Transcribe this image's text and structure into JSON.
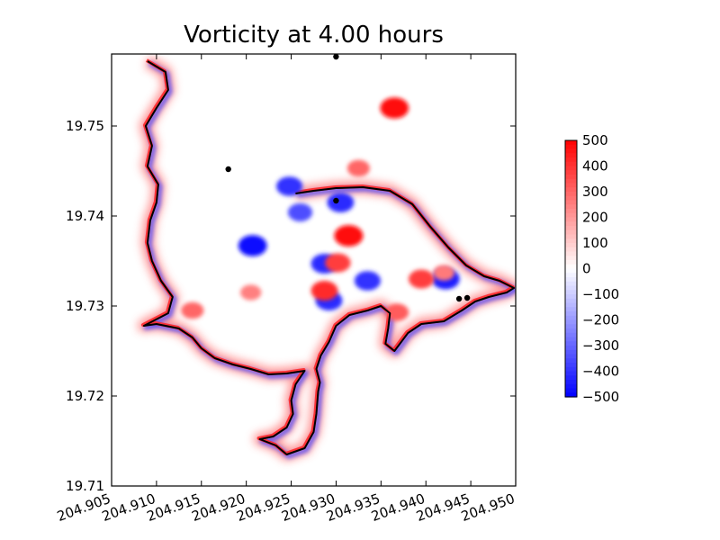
{
  "chart_data": {
    "type": "heatmap",
    "title": "Vorticity at 4.00 hours",
    "xlabel": "",
    "ylabel": "",
    "xlim": [
      204.905,
      204.95
    ],
    "ylim": [
      19.71,
      19.758
    ],
    "x_ticks": [
      "204.905",
      "204.910",
      "204.915",
      "204.920",
      "204.925",
      "204.930",
      "204.935",
      "204.940",
      "204.945",
      "204.950"
    ],
    "x_tick_values": [
      204.905,
      204.91,
      204.915,
      204.92,
      204.925,
      204.93,
      204.935,
      204.94,
      204.945,
      204.95
    ],
    "y_ticks": [
      "19.71",
      "19.72",
      "19.73",
      "19.74",
      "19.75"
    ],
    "y_tick_values": [
      19.71,
      19.72,
      19.73,
      19.74,
      19.75
    ],
    "colorbar": {
      "colormap": "bwr",
      "min": -500,
      "max": 500,
      "ticks": [
        "500",
        "400",
        "300",
        "200",
        "100",
        "0",
        "−100",
        "−200",
        "−300",
        "−400",
        "−500"
      ],
      "tick_values": [
        500,
        400,
        300,
        200,
        100,
        0,
        -100,
        -200,
        -300,
        -400,
        -500
      ],
      "colors": {
        "low": "#0000ff",
        "mid": "#ffffff",
        "high": "#ff0000"
      }
    },
    "vortices": [
      {
        "lon": 204.9207,
        "lat": 19.7367,
        "vorticity": -470
      },
      {
        "lon": 204.9287,
        "lat": 19.7347,
        "vorticity": -420
      },
      {
        "lon": 204.9292,
        "lat": 19.7306,
        "vorticity": -420
      },
      {
        "lon": 204.9305,
        "lat": 19.7415,
        "vorticity": -420
      },
      {
        "lon": 204.9335,
        "lat": 19.7328,
        "vorticity": -400
      },
      {
        "lon": 204.9422,
        "lat": 19.733,
        "vorticity": -450
      },
      {
        "lon": 204.926,
        "lat": 19.7404,
        "vorticity": -350
      },
      {
        "lon": 204.9248,
        "lat": 19.7433,
        "vorticity": -400
      },
      {
        "lon": 204.9314,
        "lat": 19.7378,
        "vorticity": 480
      },
      {
        "lon": 204.9365,
        "lat": 19.752,
        "vorticity": 470
      },
      {
        "lon": 204.9287,
        "lat": 19.7317,
        "vorticity": 420
      },
      {
        "lon": 204.9302,
        "lat": 19.7348,
        "vorticity": 380
      },
      {
        "lon": 204.9395,
        "lat": 19.733,
        "vorticity": 380
      },
      {
        "lon": 204.9325,
        "lat": 19.7453,
        "vorticity": 300
      },
      {
        "lon": 204.942,
        "lat": 19.7337,
        "vorticity": 260
      },
      {
        "lon": 204.9368,
        "lat": 19.7293,
        "vorticity": 320
      },
      {
        "lon": 204.9205,
        "lat": 19.7315,
        "vorticity": 250
      },
      {
        "lon": 204.914,
        "lat": 19.7295,
        "vorticity": 300
      }
    ],
    "markers": [
      {
        "lon": 204.93,
        "lat": 19.7577
      },
      {
        "lon": 204.918,
        "lat": 19.7452
      },
      {
        "lon": 204.93,
        "lat": 19.7417
      },
      {
        "lon": 204.9437,
        "lat": 19.7308
      },
      {
        "lon": 204.9446,
        "lat": 19.7309
      }
    ],
    "coastline": [
      [
        204.909,
        19.7572
      ],
      [
        204.911,
        19.756
      ],
      [
        204.9113,
        19.754
      ],
      [
        204.91,
        19.752
      ],
      [
        204.9088,
        19.75
      ],
      [
        204.9095,
        19.7478
      ],
      [
        204.909,
        19.7455
      ],
      [
        204.9102,
        19.7435
      ],
      [
        204.91,
        19.7415
      ],
      [
        204.9093,
        19.7395
      ],
      [
        204.909,
        19.737
      ],
      [
        204.9095,
        19.735
      ],
      [
        204.9105,
        19.7328
      ],
      [
        204.9118,
        19.731
      ],
      [
        204.9113,
        19.7292
      ],
      [
        204.9086,
        19.7278
      ],
      [
        204.91,
        19.728
      ],
      [
        204.9125,
        19.7275
      ],
      [
        204.914,
        19.7265
      ],
      [
        204.915,
        19.7253
      ],
      [
        204.9165,
        19.7242
      ],
      [
        204.9185,
        19.7235
      ],
      [
        204.9205,
        19.723
      ],
      [
        204.9225,
        19.7224
      ],
      [
        204.9245,
        19.7225
      ],
      [
        204.9265,
        19.7228
      ],
      [
        204.9255,
        19.7213
      ],
      [
        204.925,
        19.7195
      ],
      [
        204.9252,
        19.718
      ],
      [
        204.9245,
        19.7165
      ],
      [
        204.923,
        19.7155
      ],
      [
        204.9215,
        19.7152
      ],
      [
        204.9233,
        19.7145
      ],
      [
        204.9245,
        19.7135
      ],
      [
        204.9265,
        19.7142
      ],
      [
        204.9275,
        19.716
      ],
      [
        204.9278,
        19.718
      ],
      [
        204.928,
        19.7205
      ],
      [
        204.9282,
        19.7215
      ],
      [
        204.9278,
        19.723
      ],
      [
        204.9283,
        19.7245
      ],
      [
        204.9292,
        19.726
      ],
      [
        204.93,
        19.7278
      ],
      [
        204.9315,
        19.729
      ],
      [
        204.9335,
        19.7295
      ],
      [
        204.935,
        19.73
      ],
      [
        204.936,
        19.7292
      ],
      [
        204.9358,
        19.7275
      ],
      [
        204.9355,
        19.7258
      ],
      [
        204.9365,
        19.725
      ],
      [
        204.938,
        19.727
      ],
      [
        204.9395,
        19.728
      ],
      [
        204.942,
        19.7283
      ],
      [
        204.944,
        19.7295
      ],
      [
        204.9455,
        19.7305
      ],
      [
        204.947,
        19.731
      ],
      [
        204.949,
        19.7315
      ],
      [
        204.9498,
        19.732
      ],
      [
        204.9482,
        19.7328
      ],
      [
        204.9465,
        19.7333
      ],
      [
        204.9445,
        19.7345
      ],
      [
        204.9425,
        19.7365
      ],
      [
        204.9405,
        19.7388
      ],
      [
        204.9385,
        19.7413
      ],
      [
        204.936,
        19.7428
      ],
      [
        204.933,
        19.7432
      ],
      [
        204.93,
        19.7431
      ],
      [
        204.9275,
        19.7428
      ],
      [
        204.9255,
        19.7425
      ]
    ]
  }
}
